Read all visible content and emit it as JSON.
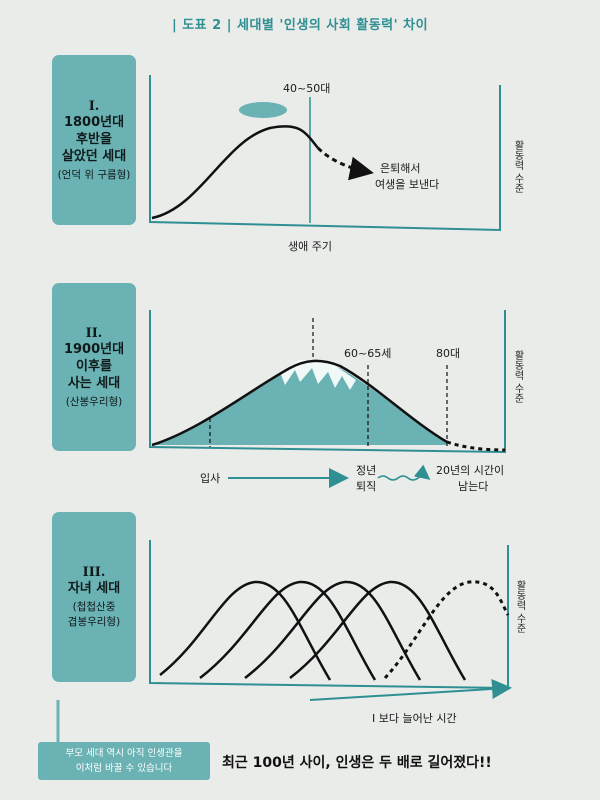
{
  "title": {
    "tag": "| 도표 2 |",
    "text": "세대별 '인생의 사회 활동력' 차이"
  },
  "panel1": {
    "numeral": "I.",
    "title_lines": [
      "1800년대",
      "후반을",
      "살았던 세대"
    ],
    "subtitle": "(언덕 위 구름형)",
    "peak_label": "40~50대",
    "retire_label_1": "은퇴해서",
    "retire_label_2": "여생을 보낸다",
    "x_label": "생애 주기",
    "y_label": "활동력 수준"
  },
  "panel2": {
    "numeral": "II.",
    "title_lines": [
      "1900년대",
      "이후를",
      "사는 세대"
    ],
    "subtitle": "(산봉우리형)",
    "age_label_1": "60~65세",
    "age_label_2": "80대",
    "entry_label": "입사",
    "retire_label_1": "정년",
    "retire_label_2": "퇴직",
    "extra_label_1": "20년의 시간이",
    "extra_label_2": "남는다",
    "y_label": "활동력 수준"
  },
  "panel3": {
    "numeral": "III.",
    "title_lines": [
      "자녀 세대"
    ],
    "subtitle_lines": [
      "(첩첩산중",
      "겹봉우리형)"
    ],
    "extra_time_label": "I 보다 늘어난 시간",
    "y_label": "활동력 수준"
  },
  "note": {
    "line1": "부모 세대 역시 아직 인생관을",
    "line2": "이처럼 바꿀 수 있습니다"
  },
  "headline": "최근 100년 사이, 인생은 두 배로 길어졌다!!",
  "colors": {
    "teal": "#6ab2b4",
    "title": "#2f8f93"
  }
}
